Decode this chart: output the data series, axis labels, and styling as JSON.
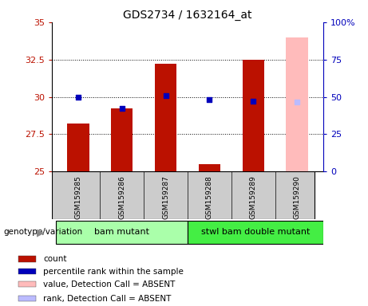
{
  "title": "GDS2734 / 1632164_at",
  "samples": [
    "GSM159285",
    "GSM159286",
    "GSM159287",
    "GSM159288",
    "GSM159289",
    "GSM159290"
  ],
  "count_values": [
    28.2,
    29.2,
    32.2,
    25.5,
    32.5,
    null
  ],
  "count_absent": [
    null,
    null,
    null,
    null,
    null,
    34.0
  ],
  "percentile_values": [
    30.0,
    29.2,
    30.1,
    29.8,
    29.7,
    null
  ],
  "percentile_absent": [
    null,
    null,
    null,
    null,
    null,
    29.65
  ],
  "ylim_left": [
    25,
    35
  ],
  "ylim_right": [
    0,
    100
  ],
  "yticks_left": [
    25,
    27.5,
    30,
    32.5,
    35
  ],
  "yticks_right": [
    0,
    25,
    50,
    75,
    100
  ],
  "ytick_labels_left": [
    "25",
    "27.5",
    "30",
    "32.5",
    "35"
  ],
  "ytick_labels_right": [
    "0",
    "25",
    "50",
    "75",
    "100%"
  ],
  "dotted_yticks": [
    27.5,
    30,
    32.5
  ],
  "bar_color": "#bb1100",
  "bar_absent_color": "#ffbbbb",
  "dot_color": "#0000bb",
  "dot_absent_color": "#bbbbff",
  "group1_label": "bam mutant",
  "group2_label": "stwl bam double mutant",
  "group1_bg": "#aaffaa",
  "group2_bg": "#44ee44",
  "sample_bg": "#cccccc",
  "genotype_label": "genotype/variation",
  "legend_items": [
    {
      "label": "count",
      "color": "#bb1100"
    },
    {
      "label": "percentile rank within the sample",
      "color": "#0000bb"
    },
    {
      "label": "value, Detection Call = ABSENT",
      "color": "#ffbbbb"
    },
    {
      "label": "rank, Detection Call = ABSENT",
      "color": "#bbbbff"
    }
  ],
  "bar_width": 0.5,
  "dot_size": 25,
  "base_value": 25
}
